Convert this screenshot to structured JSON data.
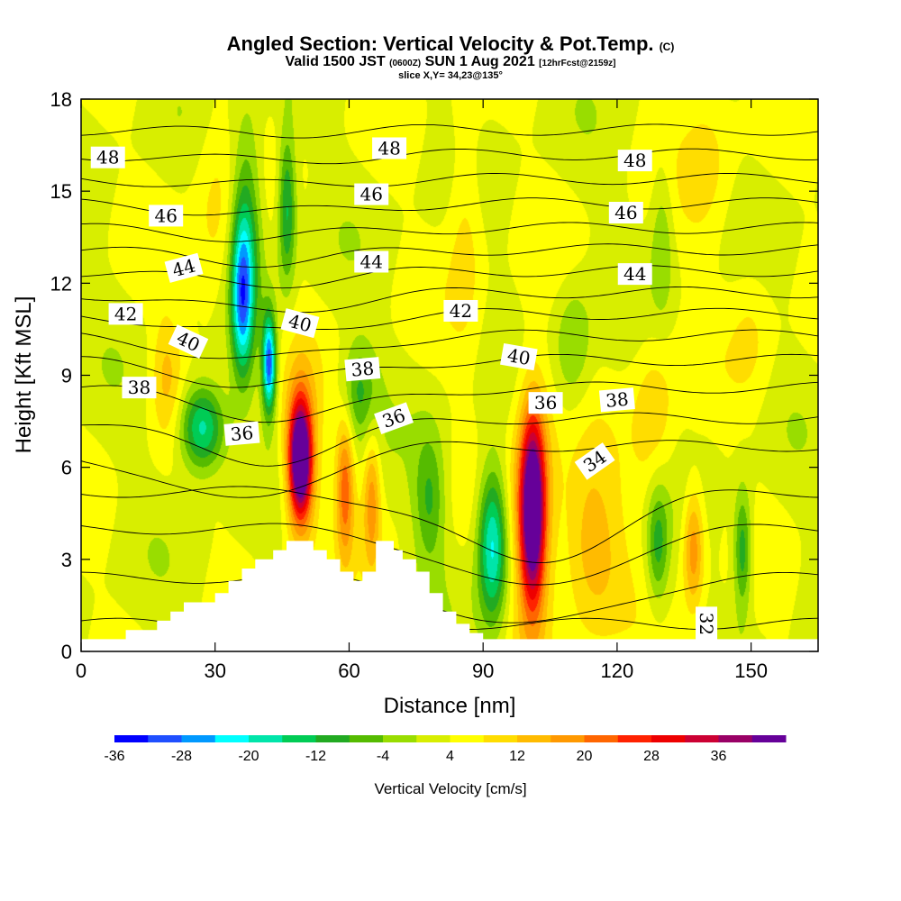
{
  "title": {
    "main": "Angled Section: Vertical Velocity & Pot.Temp.",
    "main_units": "(C)",
    "valid_prefix": "Valid 1500 JST",
    "valid_z": "(0600Z)",
    "valid_date": "SUN 1 Aug 2021",
    "forecast": "[12hrFcst@2159z]",
    "slice": "slice X,Y= 34,23@135°"
  },
  "chart_data": {
    "type": "heatmap",
    "xlabel": "Distance [nm]",
    "ylabel": "Height [Kft MSL]",
    "xlim": [
      0,
      165
    ],
    "ylim": [
      0,
      18
    ],
    "x_ticks": [
      0,
      30,
      60,
      90,
      120,
      150
    ],
    "y_ticks": [
      0,
      3,
      6,
      9,
      12,
      15,
      18
    ],
    "colorbar": {
      "label": "Vertical Velocity [cm/s]",
      "tick_labels": [
        "-36",
        "-28",
        "-20",
        "-12",
        "-4",
        "4",
        "12",
        "20",
        "28",
        "36"
      ],
      "colors": [
        "#0000ff",
        "#1f4fff",
        "#0099ff",
        "#00ffff",
        "#00e5aa",
        "#00cc55",
        "#22aa22",
        "#55bb00",
        "#99dd00",
        "#d8ee00",
        "#ffff00",
        "#ffdd00",
        "#ffbb00",
        "#ff9900",
        "#ff6600",
        "#ff2200",
        "#ee0000",
        "#cc0033",
        "#990066",
        "#660099"
      ]
    },
    "terrain_kft": [
      [
        0,
        0.4
      ],
      [
        10,
        0.4
      ],
      [
        10,
        0.7
      ],
      [
        17,
        0.7
      ],
      [
        17,
        1.0
      ],
      [
        20,
        1.0
      ],
      [
        20,
        1.3
      ],
      [
        23,
        1.3
      ],
      [
        23,
        1.6
      ],
      [
        30,
        1.6
      ],
      [
        30,
        1.9
      ],
      [
        33,
        1.9
      ],
      [
        33,
        2.3
      ],
      [
        36,
        2.3
      ],
      [
        36,
        2.7
      ],
      [
        39,
        2.7
      ],
      [
        39,
        3.0
      ],
      [
        43,
        3.0
      ],
      [
        43,
        3.3
      ],
      [
        46,
        3.3
      ],
      [
        46,
        3.6
      ],
      [
        52,
        3.6
      ],
      [
        52,
        3.3
      ],
      [
        55,
        3.3
      ],
      [
        55,
        3.0
      ],
      [
        58,
        3.0
      ],
      [
        58,
        2.6
      ],
      [
        61,
        2.6
      ],
      [
        61,
        2.3
      ],
      [
        63,
        2.3
      ],
      [
        63,
        2.6
      ],
      [
        66,
        2.6
      ],
      [
        66,
        3.6
      ],
      [
        70,
        3.6
      ],
      [
        70,
        3.3
      ],
      [
        72,
        3.3
      ],
      [
        72,
        3.0
      ],
      [
        75,
        3.0
      ],
      [
        75,
        2.6
      ],
      [
        78,
        2.6
      ],
      [
        78,
        1.9
      ],
      [
        81,
        1.9
      ],
      [
        81,
        1.3
      ],
      [
        84,
        1.3
      ],
      [
        84,
        0.9
      ],
      [
        87,
        0.9
      ],
      [
        87,
        0.6
      ],
      [
        90,
        0.6
      ],
      [
        90,
        0.4
      ],
      [
        165,
        0.4
      ]
    ],
    "updrafts": [
      {
        "x": 49,
        "z": 6.3,
        "w": 36,
        "sx": 2.2,
        "sz": 1.6
      },
      {
        "x": 49,
        "z": 6.2,
        "w": 24,
        "sx": 3.6,
        "sz": 2.8
      },
      {
        "x": 59,
        "z": 5.4,
        "w": 18,
        "sx": 2.0,
        "sz": 2.4
      },
      {
        "x": 65,
        "z": 5.0,
        "w": 14,
        "sx": 1.9,
        "sz": 2.2
      },
      {
        "x": 101,
        "z": 4.6,
        "w": 36,
        "sx": 2.5,
        "sz": 2.8
      },
      {
        "x": 101,
        "z": 4.6,
        "w": 20,
        "sx": 4.5,
        "sz": 4.3
      },
      {
        "x": 114,
        "z": 3.3,
        "w": 12,
        "sx": 7.0,
        "sz": 2.8
      },
      {
        "x": 137,
        "z": 3.4,
        "w": 16,
        "sx": 2.3,
        "sz": 2.0
      },
      {
        "x": 86,
        "z": 14.0,
        "w": 7,
        "sx": 4.0,
        "sz": 4.0
      },
      {
        "x": 19,
        "z": 9.0,
        "w": 9,
        "sx": 3.5,
        "sz": 2.0
      },
      {
        "x": 128,
        "z": 7.5,
        "w": 8,
        "sx": 5.0,
        "sz": 3.0
      },
      {
        "x": 30,
        "z": 14.0,
        "w": 6,
        "sx": 5.0,
        "sz": 4.0
      },
      {
        "x": 140,
        "z": 16.0,
        "w": 6,
        "sx": 6.0,
        "sz": 3.0
      },
      {
        "x": 150,
        "z": 10.5,
        "w": 5,
        "sx": 5.0,
        "sz": 2.5
      }
    ],
    "downdrafts": [
      {
        "x": 36,
        "z": 11.5,
        "w": -26,
        "sx": 2.4,
        "sz": 2.5
      },
      {
        "x": 42,
        "z": 9.4,
        "w": -34,
        "sx": 1.5,
        "sz": 1.6
      },
      {
        "x": 27,
        "z": 7.3,
        "w": -24,
        "sx": 5.0,
        "sz": 1.4
      },
      {
        "x": 46,
        "z": 14.5,
        "w": -18,
        "sx": 2.0,
        "sz": 2.5
      },
      {
        "x": 37,
        "z": 14.0,
        "w": -14,
        "sx": 3.5,
        "sz": 3.5
      },
      {
        "x": 92,
        "z": 3.5,
        "w": -26,
        "sx": 3.3,
        "sz": 2.5
      },
      {
        "x": 78,
        "z": 5.0,
        "w": -12,
        "sx": 3.5,
        "sz": 2.2
      },
      {
        "x": 62,
        "z": 8.5,
        "w": -12,
        "sx": 4.0,
        "sz": 1.6
      },
      {
        "x": 129,
        "z": 3.5,
        "w": -14,
        "sx": 2.5,
        "sz": 2.0
      },
      {
        "x": 148,
        "z": 3.3,
        "w": -16,
        "sx": 2.0,
        "sz": 2.0
      },
      {
        "x": 110,
        "z": 10.0,
        "w": -8,
        "sx": 4.0,
        "sz": 2.0
      },
      {
        "x": 130,
        "z": 13.5,
        "w": -8,
        "sx": 2.5,
        "sz": 2.5
      }
    ],
    "theta_contours": [
      {
        "level": 32,
        "z0": 0.9,
        "dip": 0,
        "px": 135,
        "pz": 1.0
      },
      {
        "level": 33,
        "z0": 2.4,
        "dip": 0.8,
        "px": 100,
        "pz": 2.0
      },
      {
        "level": 34,
        "z0": 4.0,
        "dip": 0.9,
        "px": 100,
        "pz": 2.2
      },
      {
        "level": 35,
        "z0": 5.2,
        "dip": 1.0,
        "px": 100,
        "pz": 2.3
      },
      {
        "level": 36,
        "z0": 6.7,
        "dip": 0.9,
        "px": 33,
        "pz": 2.0
      },
      {
        "level": 37,
        "z0": 7.6,
        "dip": 0.7,
        "px": 40,
        "pz": 2.0
      },
      {
        "level": 38,
        "z0": 8.6,
        "dip": 0.5,
        "px": 45,
        "pz": 2.0
      },
      {
        "level": 39,
        "z0": 9.5,
        "dip": 0.4,
        "px": 40,
        "pz": 2.0
      },
      {
        "level": 40,
        "z0": 10.3,
        "dip": 0.4,
        "px": 40,
        "pz": 2.0
      },
      {
        "level": 41,
        "z0": 11.0,
        "dip": 0.3,
        "px": 40,
        "pz": 2.0
      },
      {
        "level": 42,
        "z0": 11.7,
        "dip": 0.3,
        "px": 40,
        "pz": 2.0
      },
      {
        "level": 43,
        "z0": 12.4,
        "dip": 0.2,
        "px": 40,
        "pz": 2.0
      },
      {
        "level": 44,
        "z0": 13.1,
        "dip": 0.2,
        "px": 40,
        "pz": 2.0
      },
      {
        "level": 45,
        "z0": 13.8,
        "dip": 0.15,
        "px": 40,
        "pz": 2.0
      },
      {
        "level": 46,
        "z0": 14.6,
        "dip": 0.15,
        "px": 40,
        "pz": 2.0
      },
      {
        "level": 47,
        "z0": 15.4,
        "dip": 0.1,
        "px": 40,
        "pz": 2.0
      },
      {
        "level": 48,
        "z0": 16.2,
        "dip": 0.1,
        "px": 40,
        "pz": 2.0
      },
      {
        "level": 49,
        "z0": 17.0,
        "dip": 0.05,
        "px": 40,
        "pz": 2.0
      }
    ],
    "contour_labels": [
      {
        "text": "48",
        "x": 6,
        "z": 16.1,
        "rot": 0
      },
      {
        "text": "48",
        "x": 69,
        "z": 16.4,
        "rot": 0
      },
      {
        "text": "48",
        "x": 124,
        "z": 16.0,
        "rot": 0
      },
      {
        "text": "46",
        "x": 19,
        "z": 14.2,
        "rot": 0
      },
      {
        "text": "46",
        "x": 65,
        "z": 14.9,
        "rot": 0
      },
      {
        "text": "46",
        "x": 122,
        "z": 14.3,
        "rot": 0
      },
      {
        "text": "44",
        "x": 23,
        "z": 12.5,
        "rot": -15
      },
      {
        "text": "44",
        "x": 65,
        "z": 12.7,
        "rot": 0
      },
      {
        "text": "44",
        "x": 124,
        "z": 12.3,
        "rot": 0
      },
      {
        "text": "42",
        "x": 10,
        "z": 11.0,
        "rot": 0
      },
      {
        "text": "42",
        "x": 85,
        "z": 11.1,
        "rot": 0
      },
      {
        "text": "40",
        "x": 24,
        "z": 10.1,
        "rot": 25
      },
      {
        "text": "40",
        "x": 49,
        "z": 10.7,
        "rot": 15
      },
      {
        "text": "40",
        "x": 98,
        "z": 9.6,
        "rot": 10
      },
      {
        "text": "38",
        "x": 13,
        "z": 8.6,
        "rot": 0
      },
      {
        "text": "38",
        "x": 63,
        "z": 9.2,
        "rot": -5
      },
      {
        "text": "38",
        "x": 120,
        "z": 8.2,
        "rot": -5
      },
      {
        "text": "36",
        "x": 36,
        "z": 7.1,
        "rot": -5
      },
      {
        "text": "36",
        "x": 70,
        "z": 7.6,
        "rot": -20
      },
      {
        "text": "36",
        "x": 104,
        "z": 8.1,
        "rot": 0
      },
      {
        "text": "34",
        "x": 115,
        "z": 6.2,
        "rot": -35
      },
      {
        "text": "32",
        "x": 140,
        "z": 0.9,
        "rot": 90
      }
    ]
  }
}
